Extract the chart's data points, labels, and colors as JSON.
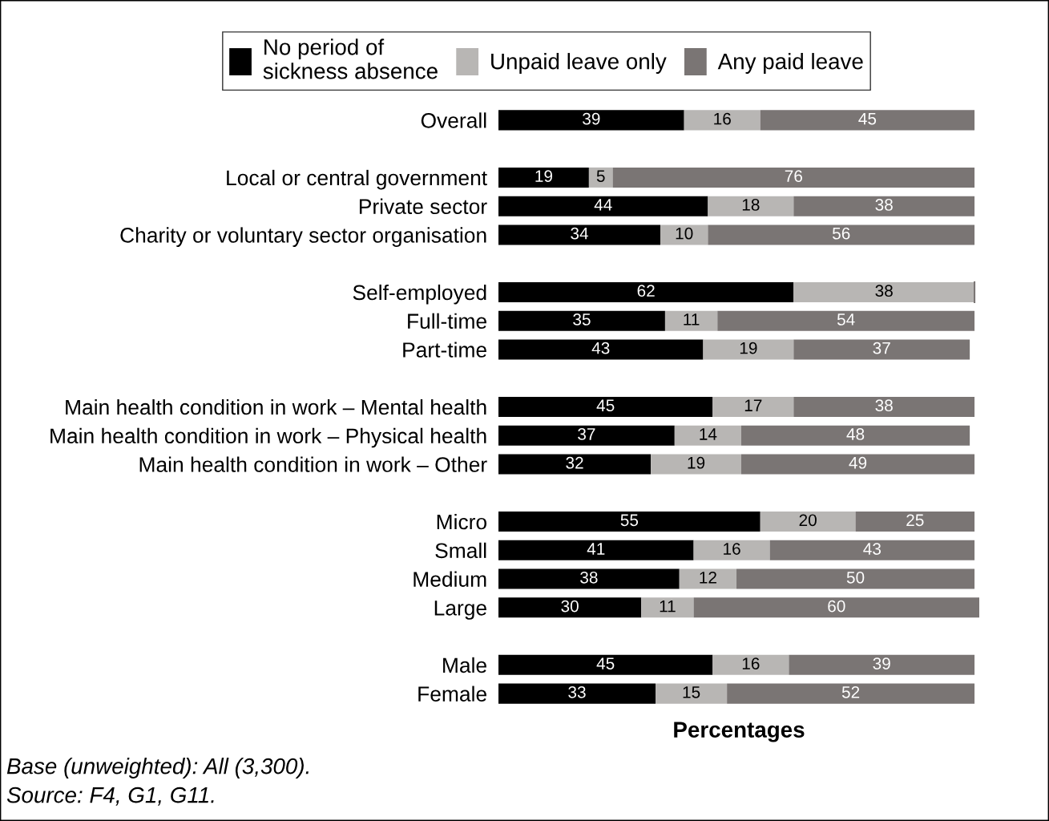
{
  "chart_data": {
    "type": "bar",
    "orientation": "horizontal",
    "stacked": true,
    "xlabel": "Percentages",
    "tick_labels": "y",
    "legend": "top",
    "xlim": [
      0,
      101
    ],
    "categories": [
      "Overall",
      null,
      "Local or central government",
      "Private sector",
      "Charity or voluntary sector organisation",
      null,
      "Self-employed",
      "Full-time",
      "Part-time",
      null,
      "Main health condition in work – Mental health",
      "Main health condition in work – Physical health",
      "Main health condition in work – Other",
      null,
      "Micro",
      "Small",
      "Medium",
      "Large",
      null,
      "Male",
      "Female"
    ],
    "series": [
      {
        "name": "No period of\nsickness absence",
        "color": "#000000",
        "values": [
          39,
          null,
          19,
          44,
          34,
          null,
          62,
          35,
          43,
          null,
          45,
          37,
          32,
          null,
          55,
          41,
          38,
          30,
          null,
          45,
          33
        ],
        "value_labels": [
          "39",
          null,
          "19",
          "44",
          "34",
          null,
          "62",
          "35",
          "43",
          null,
          "45",
          "37",
          "32",
          null,
          "55",
          "41",
          "38",
          "30",
          null,
          "45",
          "33"
        ]
      },
      {
        "name": "Unpaid leave only",
        "color": "#b8b6b4",
        "values": [
          16,
          null,
          5,
          18,
          10,
          null,
          38,
          11,
          19,
          null,
          17,
          14,
          19,
          null,
          20,
          16,
          12,
          11,
          null,
          16,
          15
        ],
        "value_labels": [
          "16",
          null,
          "5",
          "18",
          "10",
          null,
          "38",
          "11",
          "19",
          null,
          "17",
          "14",
          "19",
          null,
          "20",
          "16",
          "12",
          "11",
          null,
          "16",
          "15"
        ]
      },
      {
        "name": "Any paid leave",
        "color": "#7a7574",
        "values": [
          45,
          null,
          76,
          38,
          56,
          null,
          0,
          54,
          37,
          null,
          38,
          48,
          49,
          null,
          25,
          43,
          50,
          60,
          null,
          39,
          52
        ],
        "value_labels": [
          "45",
          null,
          "76",
          "38",
          "56",
          null,
          null,
          "54",
          "37",
          null,
          "38",
          "48",
          "49",
          null,
          "25",
          "43",
          "50",
          "60",
          null,
          "39",
          "52"
        ]
      }
    ],
    "annotations": [
      "Base (unweighted): All (3,300).",
      "Source: F4, G1, G11."
    ]
  }
}
